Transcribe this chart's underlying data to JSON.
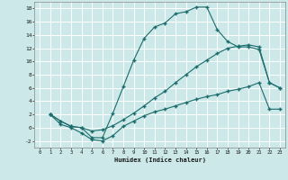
{
  "xlabel": "Humidex (Indice chaleur)",
  "bg_color": "#cce8e8",
  "grid_color": "#ffffff",
  "line_color": "#1a6b6b",
  "line2_x": [
    1,
    2,
    3,
    4,
    5,
    6,
    7,
    8,
    9,
    10,
    11,
    12,
    13,
    14,
    15,
    16,
    17,
    18,
    19,
    20,
    21,
    22,
    23
  ],
  "line2_y": [
    2.0,
    1.0,
    0.2,
    0.0,
    -1.5,
    -1.5,
    2.2,
    6.2,
    10.2,
    13.5,
    15.2,
    15.8,
    17.2,
    17.5,
    18.2,
    18.2,
    14.8,
    13.0,
    12.2,
    12.2,
    11.8,
    6.8,
    6.0
  ],
  "line1_x": [
    1,
    2,
    3,
    4,
    5,
    6,
    7,
    8,
    9,
    10,
    11,
    12,
    13,
    14,
    15,
    16,
    17,
    18,
    19,
    20,
    21,
    22,
    23
  ],
  "line1_y": [
    2.0,
    1.0,
    0.2,
    0.0,
    -0.5,
    -0.3,
    0.3,
    1.2,
    2.2,
    3.3,
    4.5,
    5.5,
    6.8,
    8.0,
    9.2,
    10.2,
    11.2,
    12.0,
    12.3,
    12.5,
    12.2,
    6.8,
    6.0
  ],
  "line3_x": [
    1,
    2,
    3,
    4,
    5,
    6,
    7,
    8,
    9,
    10,
    11,
    12,
    13,
    14,
    15,
    16,
    17,
    18,
    19,
    20,
    21,
    22,
    23
  ],
  "line3_y": [
    2.0,
    0.5,
    0.0,
    -0.8,
    -1.8,
    -2.0,
    -1.2,
    0.2,
    1.0,
    1.8,
    2.4,
    2.8,
    3.3,
    3.8,
    4.3,
    4.7,
    5.0,
    5.5,
    5.8,
    6.2,
    6.8,
    2.8,
    2.8
  ],
  "xlim": [
    -0.5,
    23.5
  ],
  "ylim": [
    -3,
    19
  ],
  "xticks": [
    0,
    1,
    2,
    3,
    4,
    5,
    6,
    7,
    8,
    9,
    10,
    11,
    12,
    13,
    14,
    15,
    16,
    17,
    18,
    19,
    20,
    21,
    22,
    23
  ],
  "yticks": [
    -2,
    0,
    2,
    4,
    6,
    8,
    10,
    12,
    14,
    16,
    18
  ]
}
